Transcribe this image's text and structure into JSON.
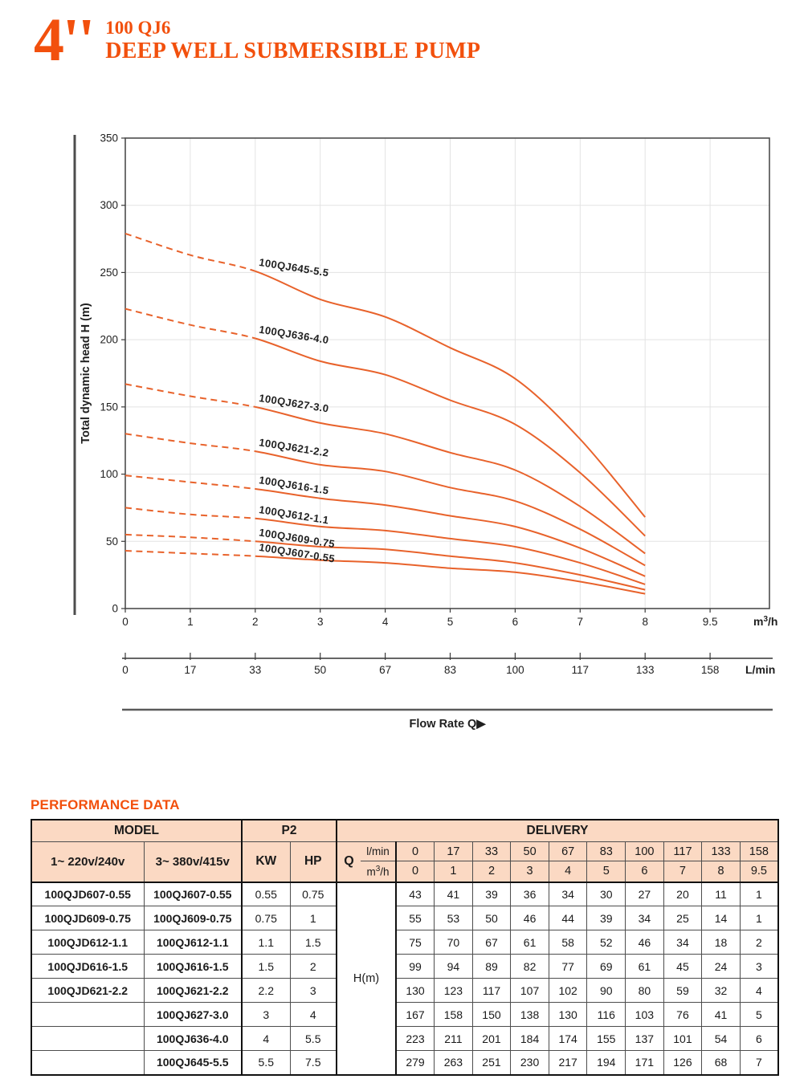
{
  "header": {
    "size": "4''",
    "series": "100 QJ6",
    "title": "DEEP WELL SUBMERSIBLE PUMP"
  },
  "chart_data": {
    "type": "line",
    "ylabel": "Total dynamic head H (m)",
    "flow_label": "Flow Rate Q▶",
    "ylim": [
      0,
      350
    ],
    "yticks": [
      0,
      50,
      100,
      150,
      200,
      250,
      300,
      350
    ],
    "x_axis_m3h": {
      "labels": [
        "0",
        "1",
        "2",
        "3",
        "4",
        "5",
        "6",
        "7",
        "8",
        "9.5"
      ],
      "unit_parts": {
        "pre": "m",
        "sup": "3",
        "post": "/h"
      }
    },
    "x_axis_lmin": {
      "labels": [
        "0",
        "17",
        "33",
        "50",
        "67",
        "83",
        "100",
        "117",
        "133",
        "158"
      ],
      "unit": "L/min"
    },
    "curve_color": "#e8622b",
    "dashed_until_q": 2,
    "plotted_q_max": 8,
    "grid": true,
    "series": [
      {
        "name": "100QJ645-5.5",
        "values": [
          279,
          263,
          251,
          230,
          217,
          194,
          171,
          126,
          68,
          7
        ]
      },
      {
        "name": "100QJ636-4.0",
        "values": [
          223,
          211,
          201,
          184,
          174,
          155,
          137,
          101,
          54,
          6
        ]
      },
      {
        "name": "100QJ627-3.0",
        "values": [
          167,
          158,
          150,
          138,
          130,
          116,
          103,
          76,
          41,
          5
        ]
      },
      {
        "name": "100QJ621-2.2",
        "values": [
          130,
          123,
          117,
          107,
          102,
          90,
          80,
          59,
          32,
          4
        ]
      },
      {
        "name": "100QJ616-1.5",
        "values": [
          99,
          94,
          89,
          82,
          77,
          69,
          61,
          45,
          24,
          3
        ]
      },
      {
        "name": "100QJ612-1.1",
        "values": [
          75,
          70,
          67,
          61,
          58,
          52,
          46,
          34,
          18,
          2
        ]
      },
      {
        "name": "100QJ609-0.75",
        "values": [
          55,
          53,
          50,
          46,
          44,
          39,
          34,
          25,
          14,
          1
        ]
      },
      {
        "name": "100QJ607-0.55",
        "values": [
          43,
          41,
          39,
          36,
          34,
          30,
          27,
          20,
          11,
          1
        ]
      }
    ]
  },
  "performance": {
    "heading": "PERFORMANCE DATA",
    "table": {
      "model_header": "MODEL",
      "p2_header": "P2",
      "delivery_header": "DELIVERY",
      "col_1phase": "1~ 220v/240v",
      "col_3phase": "3~ 380v/415v",
      "kw": "KW",
      "hp": "HP",
      "q": "Q",
      "lmin_label": "l/min",
      "m3h_parts": {
        "pre": "m",
        "sup": "3",
        "post": "/h"
      },
      "lmin_values": [
        "0",
        "17",
        "33",
        "50",
        "67",
        "83",
        "100",
        "117",
        "133",
        "158"
      ],
      "m3h_values": [
        "0",
        "1",
        "2",
        "3",
        "4",
        "5",
        "6",
        "7",
        "8",
        "9.5"
      ],
      "hm_label": "H(m)",
      "rows": [
        {
          "model_1ph": "100QJD607-0.55",
          "model_3ph": "100QJ607-0.55",
          "kw": "0.55",
          "hp": "0.75",
          "delivery": [
            43,
            41,
            39,
            36,
            34,
            30,
            27,
            20,
            11,
            1
          ]
        },
        {
          "model_1ph": "100QJD609-0.75",
          "model_3ph": "100QJ609-0.75",
          "kw": "0.75",
          "hp": "1",
          "delivery": [
            55,
            53,
            50,
            46,
            44,
            39,
            34,
            25,
            14,
            1
          ]
        },
        {
          "model_1ph": "100QJD612-1.1",
          "model_3ph": "100QJ612-1.1",
          "kw": "1.1",
          "hp": "1.5",
          "delivery": [
            75,
            70,
            67,
            61,
            58,
            52,
            46,
            34,
            18,
            2
          ]
        },
        {
          "model_1ph": "100QJD616-1.5",
          "model_3ph": "100QJ616-1.5",
          "kw": "1.5",
          "hp": "2",
          "delivery": [
            99,
            94,
            89,
            82,
            77,
            69,
            61,
            45,
            24,
            3
          ]
        },
        {
          "model_1ph": "100QJD621-2.2",
          "model_3ph": "100QJ621-2.2",
          "kw": "2.2",
          "hp": "3",
          "delivery": [
            130,
            123,
            117,
            107,
            102,
            90,
            80,
            59,
            32,
            4
          ]
        },
        {
          "model_1ph": "",
          "model_3ph": "100QJ627-3.0",
          "kw": "3",
          "hp": "4",
          "delivery": [
            167,
            158,
            150,
            138,
            130,
            116,
            103,
            76,
            41,
            5
          ]
        },
        {
          "model_1ph": "",
          "model_3ph": "100QJ636-4.0",
          "kw": "4",
          "hp": "5.5",
          "delivery": [
            223,
            211,
            201,
            184,
            174,
            155,
            137,
            101,
            54,
            6
          ]
        },
        {
          "model_1ph": "",
          "model_3ph": "100QJ645-5.5",
          "kw": "5.5",
          "hp": "7.5",
          "delivery": [
            279,
            263,
            251,
            230,
            217,
            194,
            171,
            126,
            68,
            7
          ]
        }
      ]
    }
  },
  "colors": {
    "accent": "#f2500d",
    "curve": "#e8622b",
    "table_header_bg": "#fbd9c3"
  }
}
